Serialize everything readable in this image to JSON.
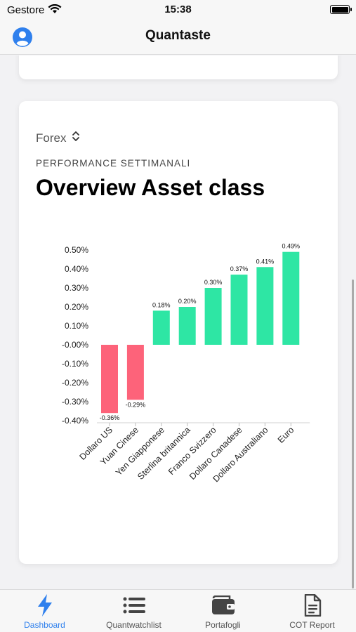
{
  "status": {
    "carrier": "Gestore",
    "time": "15:38"
  },
  "nav": {
    "title": "Quantaste",
    "avatar_icon": "user-circle-icon"
  },
  "card": {
    "selector": "Forex",
    "subtitle": "PERFORMANCE SETTIMANALI",
    "title": "Overview Asset class"
  },
  "tabs": [
    {
      "label": "Dashboard",
      "icon": "bolt-icon",
      "active": true
    },
    {
      "label": "Quantwatchlist",
      "icon": "list-icon",
      "active": false
    },
    {
      "label": "Portafogli",
      "icon": "wallet-icon",
      "active": false
    },
    {
      "label": "COT Report",
      "icon": "document-icon",
      "active": false
    }
  ],
  "colors": {
    "positive": "#2ee6a4",
    "negative": "#fd637a",
    "accent": "#2f80ed"
  },
  "chart_data": {
    "type": "bar",
    "title": "Overview Asset class",
    "categories": [
      "Dollaro US",
      "Yuan Cinese",
      "Yen Giapponese",
      "Sterlina britannica",
      "Franco Svizzero",
      "Dollaro Canadese",
      "Dollaro Australiano",
      "Euro"
    ],
    "values": [
      -0.36,
      -0.29,
      0.18,
      0.2,
      0.3,
      0.37,
      0.41,
      0.49
    ],
    "value_labels": [
      "-0.36%",
      "-0.29%",
      "0.18%",
      "0.20%",
      "0.30%",
      "0.37%",
      "0.41%",
      "0.49%"
    ],
    "y_ticks": [
      0.5,
      0.4,
      0.3,
      0.2,
      0.1,
      0.0,
      -0.1,
      -0.2,
      -0.3,
      -0.4
    ],
    "y_tick_labels": [
      "0.50%",
      "0.40%",
      "0.30%",
      "0.20%",
      "0.10%",
      "-0.00%",
      "-0.10%",
      "-0.20%",
      "-0.30%",
      "-0.40%"
    ],
    "ylim": [
      -0.4,
      0.5
    ],
    "grid": false,
    "legend": false
  }
}
